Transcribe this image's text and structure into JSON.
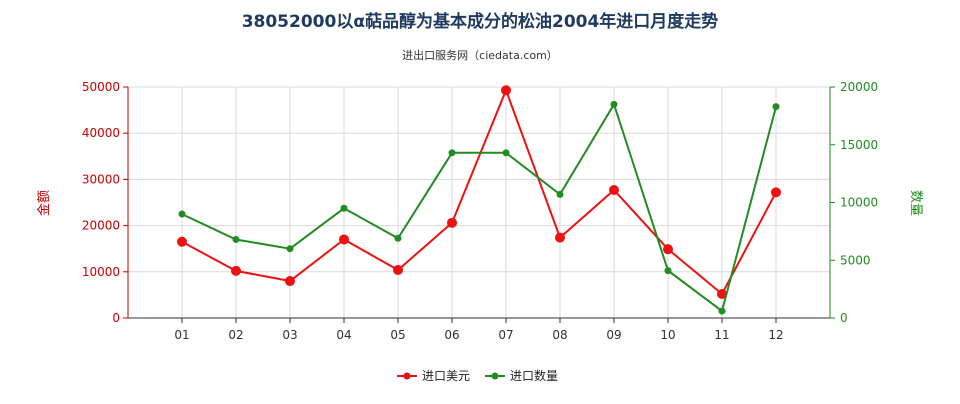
{
  "chart_data": {
    "type": "line",
    "title": "38052000以α萜品醇为基本成分的松油2004年进口月度走势",
    "subtitle": "进出口服务网（ciedata.com）",
    "categories": [
      "01",
      "02",
      "03",
      "04",
      "05",
      "06",
      "07",
      "08",
      "09",
      "10",
      "11",
      "12"
    ],
    "y_left": {
      "label": "金额",
      "range": [
        0,
        50000
      ],
      "ticks": [
        "0",
        "10000",
        "20000",
        "30000",
        "40000",
        "50000"
      ],
      "tick_values": [
        0,
        10000,
        20000,
        30000,
        40000,
        50000
      ]
    },
    "y_right": {
      "label": "数量",
      "range": [
        0,
        20000
      ],
      "ticks": [
        "0",
        "5000",
        "10000",
        "15000",
        "20000"
      ],
      "tick_values": [
        0,
        5000,
        10000,
        15000,
        20000
      ]
    },
    "series": [
      {
        "name": "进口美元",
        "axis": "left",
        "color": "#ee1111",
        "values": [
          16500,
          10200,
          8000,
          17000,
          10400,
          20600,
          49300,
          17400,
          27700,
          14900,
          5200,
          27200
        ]
      },
      {
        "name": "进口数量",
        "axis": "right",
        "color": "#228b22",
        "values": [
          9000,
          6800,
          6000,
          9500,
          6900,
          14300,
          14300,
          10700,
          18500,
          4100,
          600,
          18300
        ]
      }
    ],
    "grid": true,
    "legend_position": "bottom-center",
    "axis_colors": {
      "left": "#cc0000",
      "right": "#228b22"
    }
  }
}
